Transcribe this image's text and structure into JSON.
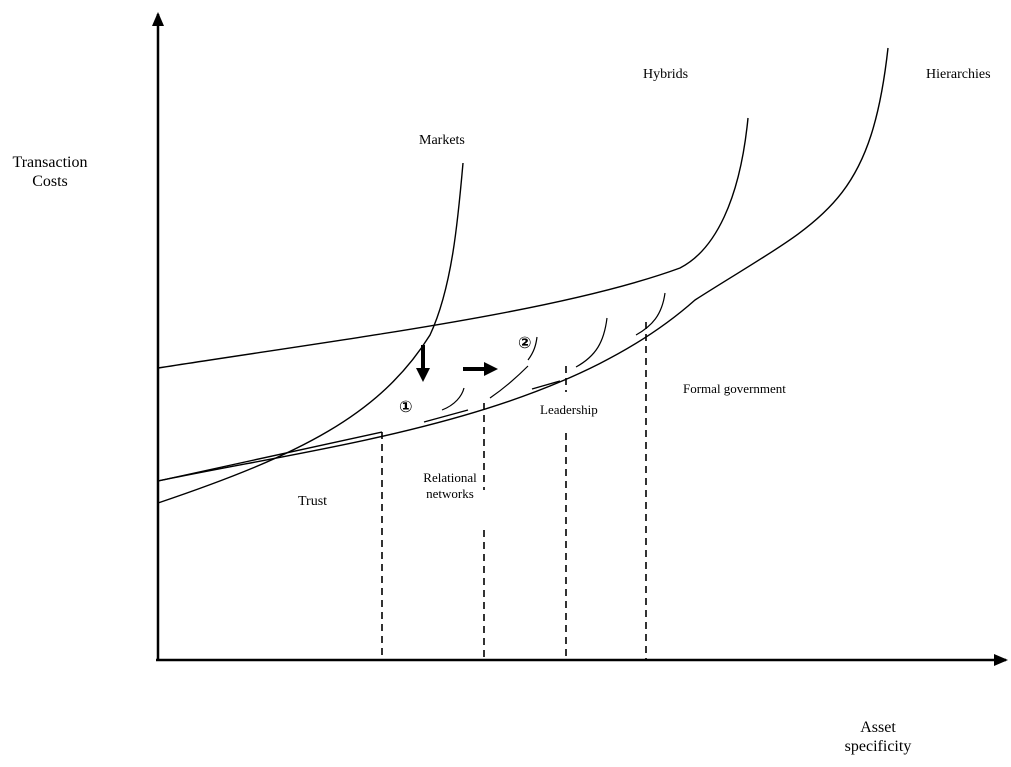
{
  "axes": {
    "y_label_line1": "Transaction",
    "y_label_line2": "Costs",
    "x_label_line1": "Asset",
    "x_label_line2": "specificity"
  },
  "curves": {
    "markets": "Markets",
    "hybrids": "Hybrids",
    "hierarchies": "Hierarchies"
  },
  "regions": {
    "trust": "Trust",
    "relational_line1": "Relational",
    "relational_line2": "networks",
    "leadership": "Leadership",
    "formal": "Formal government"
  },
  "markers": {
    "one": "①",
    "two": "②"
  }
}
